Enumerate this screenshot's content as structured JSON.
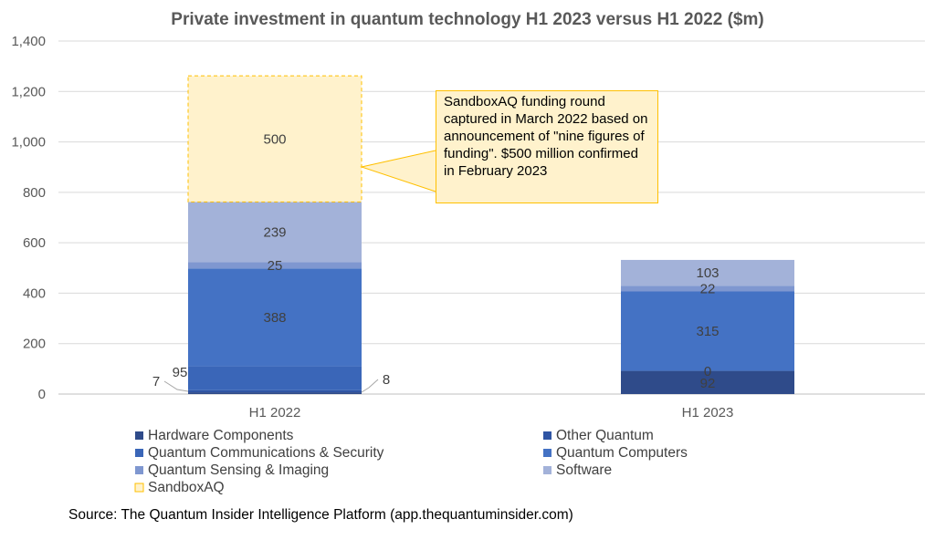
{
  "chart_data": {
    "type": "bar",
    "stacked": true,
    "title": "Private investment in quantum technology H1 2023 versus H1 2022 ($m)",
    "categories": [
      "H1 2022",
      "H1 2023"
    ],
    "ylim": [
      0,
      1400
    ],
    "yticks": [
      0,
      200,
      400,
      600,
      800,
      1000,
      1200,
      1400
    ],
    "ytick_labels": [
      "0",
      "200",
      "400",
      "600",
      "800",
      "1,000",
      "1,200",
      "1,400"
    ],
    "grid": true,
    "legend_position": "bottom",
    "series": [
      {
        "name": "Hardware Components",
        "values": [
          7,
          92
        ],
        "labels": [
          "7",
          "92"
        ],
        "color": "#2f4b8a"
      },
      {
        "name": "Other Quantum",
        "values": [
          8,
          0
        ],
        "labels": [
          "8",
          "0"
        ],
        "color": "#2f55a4"
      },
      {
        "name": "Quantum Communications & Security",
        "values": [
          95,
          0
        ],
        "labels": [
          "95",
          ""
        ],
        "color": "#3a66b8"
      },
      {
        "name": "Quantum Computers",
        "values": [
          388,
          315
        ],
        "labels": [
          "388",
          "315"
        ],
        "color": "#4472c4"
      },
      {
        "name": "Quantum Sensing & Imaging",
        "values": [
          25,
          22
        ],
        "labels": [
          "25",
          "22"
        ],
        "color": "#7f97d0"
      },
      {
        "name": "Software",
        "values": [
          239,
          103
        ],
        "labels": [
          "239",
          "103"
        ],
        "color": "#a3b2d9"
      },
      {
        "name": "SandboxAQ",
        "values": [
          500,
          0
        ],
        "labels": [
          "500",
          ""
        ],
        "color": "#fff2cc"
      }
    ],
    "annotation": "SandboxAQ funding round captured in March 2022 based on announcement of \"nine figures of funding\". $500 million confirmed in February 2023",
    "source": "Source: The Quantum Insider Intelligence Platform (app.thequantuminsider.com)"
  }
}
